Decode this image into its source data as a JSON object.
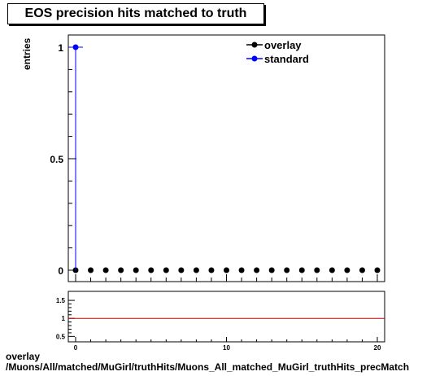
{
  "chart_data": {
    "title": "EOS precision hits matched to truth",
    "type": "scatter",
    "ylabel": "entries",
    "xlabel": "",
    "xlim": [
      -0.5,
      20.5
    ],
    "ylim": [
      -0.08,
      1.1
    ],
    "y_ticks": [
      "0",
      "0.5",
      "1"
    ],
    "x_ticks": [
      "0",
      "10",
      "20"
    ],
    "legend_position": "top-right",
    "series": [
      {
        "name": "overlay",
        "color": "#000000",
        "x": [
          0,
          1,
          2,
          3,
          4,
          5,
          6,
          7,
          8,
          9,
          10,
          11,
          12,
          13,
          14,
          15,
          16,
          17,
          18,
          19,
          20
        ],
        "y": [
          0,
          0,
          0,
          0,
          0,
          0,
          0,
          0,
          0,
          0,
          0,
          0,
          0,
          0,
          0,
          0,
          0,
          0,
          0,
          0,
          0
        ]
      },
      {
        "name": "standard",
        "color": "#0000ff",
        "x": [
          0
        ],
        "y": [
          1
        ]
      }
    ],
    "ratio_panel": {
      "ylim": [
        0.35,
        1.75
      ],
      "y_ticks": [
        "0.5",
        "1",
        "1.5"
      ],
      "reference_line": 1,
      "line_color": "#cc0000"
    }
  },
  "footer": {
    "line1": "overlay",
    "line2": "/Muons/All/matched/MuGirl/truthHits/Muons_All_matched_MuGirl_truthHits_precMatch"
  }
}
